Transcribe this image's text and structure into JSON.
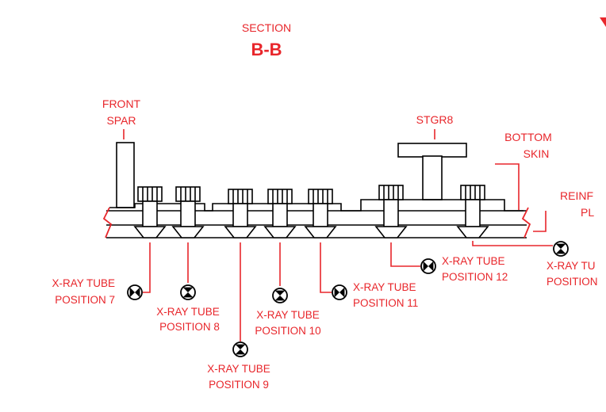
{
  "section": {
    "line1": "SECTION",
    "line2": "B-B"
  },
  "labels": {
    "front_spar_1": "FRONT",
    "front_spar_2": "SPAR",
    "stringer": "STGR8",
    "bottom_skin_1": "BOTTOM",
    "bottom_skin_2": "SKIN",
    "reinf_1": "REINF",
    "reinf_2": "PL"
  },
  "tubes": [
    {
      "l1": "X-RAY TUBE",
      "l2": "POSITION 7"
    },
    {
      "l1": "X-RAY TUBE",
      "l2": "POSITION 8"
    },
    {
      "l1": "X-RAY TUBE",
      "l2": "POSITION 9"
    },
    {
      "l1": "X-RAY TUBE",
      "l2": "POSITION 10"
    },
    {
      "l1": "X-RAY TUBE",
      "l2": "POSITION 11"
    },
    {
      "l1": "X-RAY TUBE",
      "l2": "POSITION 12"
    },
    {
      "l1": "X-RAY TU",
      "l2": "POSITION"
    }
  ],
  "colors": {
    "annotation": "#e8262b",
    "structure": "#000000"
  }
}
